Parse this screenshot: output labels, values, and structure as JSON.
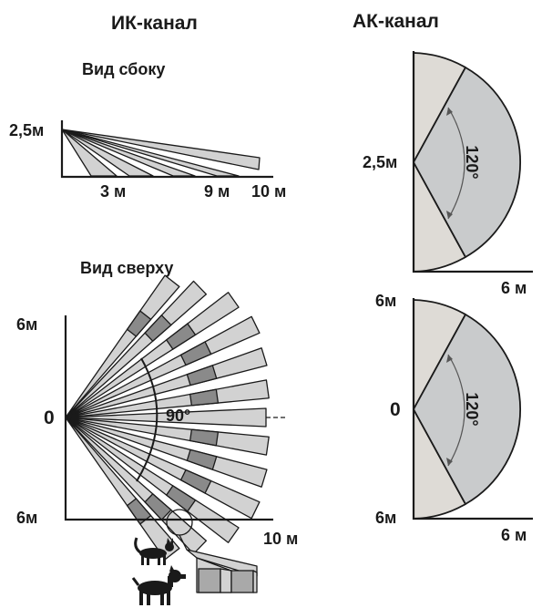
{
  "titles": {
    "ir_channel": "ИК-канал",
    "mw_channel": "АК-канал",
    "side_view": "Вид сбоку",
    "top_view": "Вид сверху"
  },
  "side_view": {
    "height_label": "2,5м",
    "distances": [
      "3 м",
      "9 м",
      "10 м"
    ]
  },
  "top_view": {
    "y_top_label": "6м",
    "origin_label": "0",
    "y_bottom_label": "6м",
    "x_label": "10 м",
    "angle_label": "90°"
  },
  "mw_side": {
    "height_label": "2,5м",
    "x_label": "6 м",
    "angle_label": "120°"
  },
  "mw_top": {
    "y_top_label": "6м",
    "origin_label": "0",
    "y_bottom_label": "6м",
    "x_label": "6 м",
    "angle_label": "120°"
  },
  "icons": [
    "cat-icon",
    "dog-icon",
    "magnifier-circle"
  ],
  "colors": {
    "beam_fill": "#d2d2d2",
    "beam_dark": "#8a8a8a",
    "zone_light": "#dedbd6",
    "zone_mid": "#c9cbcc",
    "line": "#1a1a1a"
  }
}
